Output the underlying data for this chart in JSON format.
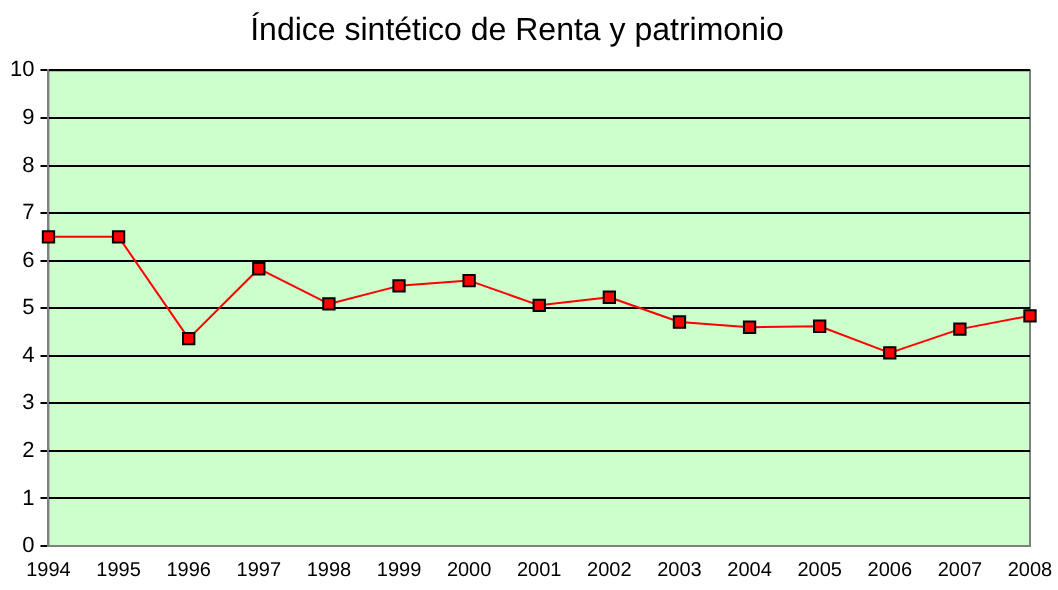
{
  "chart_data": {
    "type": "line",
    "title": "Índice sintético de Renta y patrimonio",
    "categories": [
      "1994",
      "1995",
      "1996",
      "1997",
      "1998",
      "1999",
      "2000",
      "2001",
      "2002",
      "2003",
      "2004",
      "2005",
      "2006",
      "2007",
      "2008"
    ],
    "series": [
      {
        "color": "#ff0000",
        "values": [
          6.5,
          6.5,
          4.36,
          5.83,
          5.09,
          5.47,
          5.58,
          5.06,
          5.23,
          4.71,
          4.6,
          4.62,
          4.06,
          4.56,
          4.84
        ]
      }
    ],
    "ylim": [
      0,
      10
    ],
    "yticks": [
      0,
      1,
      2,
      3,
      4,
      5,
      6,
      7,
      8,
      9,
      10
    ],
    "grid": "y",
    "legend": false,
    "marker": "square",
    "line_style": "solid"
  }
}
